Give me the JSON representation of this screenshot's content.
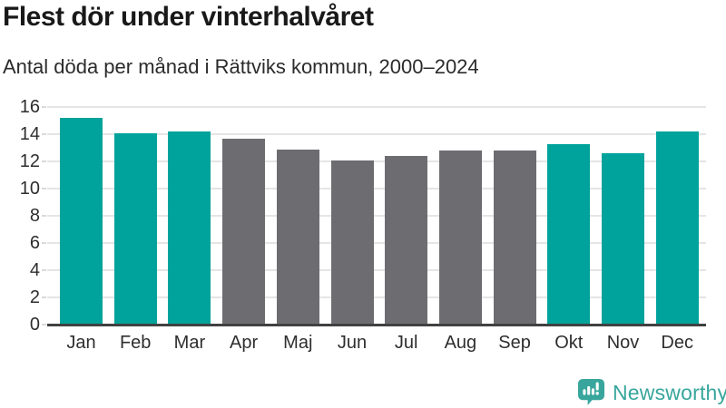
{
  "header": {
    "title": "Flest dör under vinterhalvåret",
    "subtitle": "Antal döda per månad i Rättviks kommun, 2000–2024"
  },
  "branding": {
    "logo_text": "Newsworthy",
    "logo_icon": "speech-bubble-barchart-icon"
  },
  "colors": {
    "winter_bar": "#00a39b",
    "summer_bar": "#6d6d71",
    "gridline": "#e5e5e5",
    "axis_line": "#414141",
    "title_text": "#191919",
    "body_text": "#2e2e2e",
    "logo_teal": "#38a69c"
  },
  "chart_data": {
    "type": "bar",
    "title": "Flest dör under vinterhalvåret",
    "subtitle": "Antal döda per månad i Rättviks kommun, 2000–2024",
    "categories": [
      "Jan",
      "Feb",
      "Mar",
      "Apr",
      "Maj",
      "Jun",
      "Jul",
      "Aug",
      "Sep",
      "Okt",
      "Nov",
      "Dec"
    ],
    "values": [
      15.2,
      14.1,
      14.2,
      13.7,
      12.9,
      12.1,
      12.4,
      12.8,
      12.8,
      13.3,
      12.6,
      14.2
    ],
    "bar_palette": [
      "winter",
      "winter",
      "winter",
      "summer",
      "summer",
      "summer",
      "summer",
      "summer",
      "summer",
      "winter",
      "winter",
      "winter"
    ],
    "xlabel": "",
    "ylabel": "",
    "ylim": [
      0,
      16
    ],
    "yticks": [
      0,
      2,
      4,
      6,
      8,
      10,
      12,
      14,
      16
    ],
    "grid": "horizontal-on",
    "legend": "none"
  }
}
